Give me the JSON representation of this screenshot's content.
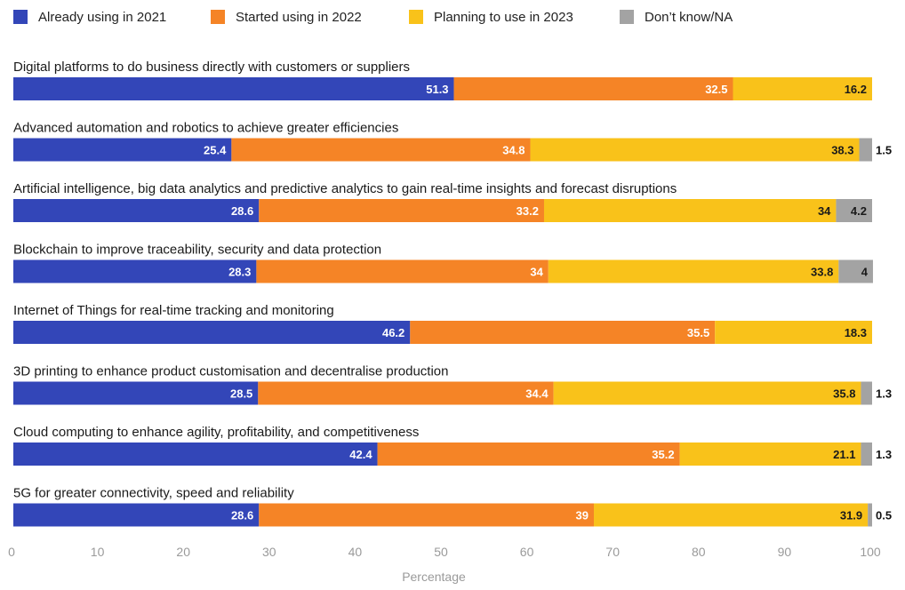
{
  "chart_data": {
    "type": "bar",
    "orientation": "horizontal",
    "stacked": true,
    "xlabel": "Percentage",
    "xlim": [
      0,
      100
    ],
    "xticks": [
      0,
      10,
      20,
      30,
      40,
      50,
      60,
      70,
      80,
      90,
      100
    ],
    "grid": false,
    "legend_position": "top",
    "categories": [
      "Digital platforms to do business directly with customers or suppliers",
      "Advanced automation and robotics to achieve greater efficiencies",
      "Artificial intelligence, big data analytics and predictive analytics to gain real-time insights and forecast disruptions",
      "Blockchain to improve traceability, security and data protection",
      "Internet of Things for real-time tracking and monitoring",
      "3D printing to enhance product customisation and decentralise production",
      "Cloud computing to enhance agility, profitability, and competitiveness",
      "5G for greater connectivity, speed and reliability"
    ],
    "series": [
      {
        "name": "Already using in 2021",
        "color": "#3346b8",
        "label_color": "#ffffff",
        "values": [
          51.3,
          25.4,
          28.6,
          28.3,
          46.2,
          28.5,
          42.4,
          28.6
        ]
      },
      {
        "name": "Started using in 2022",
        "color": "#f58426",
        "label_color": "#ffffff",
        "values": [
          32.5,
          34.8,
          33.2,
          34,
          35.5,
          34.4,
          35.2,
          39
        ]
      },
      {
        "name": "Planning to use in 2023",
        "color": "#f9c21a",
        "label_color": "#1a1a1a",
        "values": [
          16.2,
          38.3,
          34,
          33.8,
          18.3,
          35.8,
          21.1,
          31.9
        ]
      },
      {
        "name": "Don’t know/NA",
        "color": "#a3a3a3",
        "label_color": "#1a1a1a",
        "values": [
          0,
          1.5,
          4.2,
          4,
          0,
          1.3,
          1.3,
          0.5
        ]
      }
    ]
  }
}
